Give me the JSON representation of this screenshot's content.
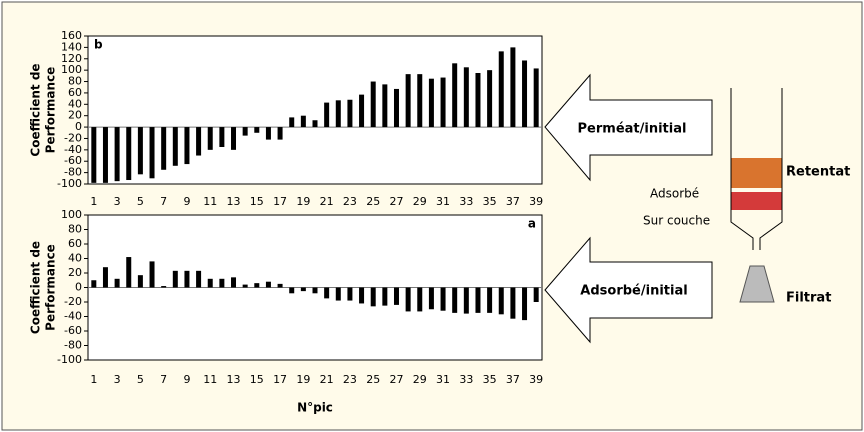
{
  "chart_data": [
    {
      "type": "bar",
      "title": "b",
      "ylabel": [
        "Coefficient de",
        "Performance"
      ],
      "categories": [
        1,
        null,
        3,
        null,
        5,
        null,
        7,
        null,
        9,
        null,
        11,
        null,
        13,
        null,
        15,
        null,
        17,
        null,
        19,
        null,
        21,
        null,
        23,
        null,
        25,
        null,
        27,
        null,
        29,
        null,
        31,
        null,
        33,
        null,
        35,
        null,
        37,
        null,
        39
      ],
      "values": [
        -98,
        -98,
        -95,
        -93,
        -83,
        -90,
        -75,
        -68,
        -65,
        -50,
        -40,
        -35,
        -40,
        -15,
        -10,
        -22,
        -22,
        17,
        20,
        12,
        43,
        47,
        48,
        57,
        80,
        75,
        67,
        93,
        93,
        85,
        87,
        112,
        105,
        95,
        100,
        133,
        140,
        117,
        103
      ],
      "color": "#000000",
      "ylim": [
        -100,
        160
      ],
      "yticks": [
        -100,
        -80,
        -60,
        -40,
        -20,
        0,
        20,
        40,
        60,
        80,
        100,
        120,
        140,
        160
      ],
      "grid": false
    },
    {
      "type": "bar",
      "title": "a",
      "ylabel": [
        "Coefficient de",
        "Performance"
      ],
      "xlabel": "N°pic",
      "categories": [
        1,
        null,
        3,
        null,
        5,
        null,
        7,
        null,
        9,
        null,
        11,
        null,
        13,
        null,
        15,
        null,
        17,
        null,
        19,
        null,
        21,
        null,
        23,
        null,
        25,
        null,
        27,
        null,
        29,
        null,
        31,
        null,
        33,
        null,
        35,
        null,
        37,
        null,
        39
      ],
      "values": [
        10,
        28,
        12,
        42,
        17,
        36,
        2,
        23,
        23,
        23,
        12,
        12,
        14,
        4,
        6,
        8,
        5,
        -8,
        -5,
        -8,
        -15,
        -18,
        -18,
        -22,
        -26,
        -25,
        -24,
        -33,
        -33,
        -30,
        -32,
        -35,
        -36,
        -35,
        -35,
        -37,
        -43,
        -45,
        -20
      ],
      "color": "#000000",
      "ylim": [
        -100,
        100
      ],
      "yticks": [
        -100,
        -80,
        -60,
        -40,
        -20,
        0,
        20,
        40,
        60,
        80,
        100
      ],
      "grid": false
    }
  ],
  "diagram": {
    "arrows": [
      "Perméat/initial",
      "Adsorbé/initial"
    ],
    "retentat": "Retentat",
    "adsorbe": "Adsorbé",
    "sur_couche": "Sur couche",
    "filtrat": "Filtrat"
  }
}
